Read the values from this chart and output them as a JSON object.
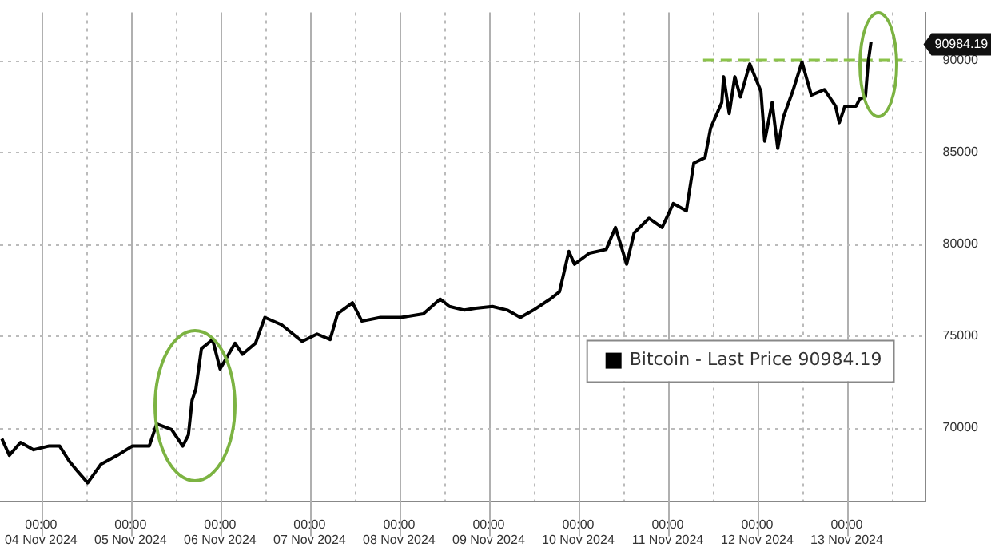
{
  "chart_data": {
    "type": "line",
    "x": [
      "2024-11-03T13:30",
      "2024-11-03T15:30",
      "2024-11-03T18:30",
      "2024-11-03T22:00",
      "2024-11-04T02:00",
      "2024-11-04T05:00",
      "2024-11-04T07:30",
      "2024-11-04T09:30",
      "2024-11-04T12:30",
      "2024-11-04T16:00",
      "2024-11-04T20:30",
      "2024-11-05T00:30",
      "2024-11-05T05:00",
      "2024-11-05T07:00",
      "2024-11-05T11:00",
      "2024-11-05T14:00",
      "2024-11-05T15:30",
      "2024-11-05T16:30",
      "2024-11-05T17:30",
      "2024-11-05T19:00",
      "2024-11-05T22:00",
      "2024-11-06T00:00",
      "2024-11-06T04:00",
      "2024-11-06T06:00",
      "2024-11-06T09:30",
      "2024-11-06T12:00",
      "2024-11-06T16:30",
      "2024-11-06T22:00",
      "2024-11-07T02:00",
      "2024-11-07T05:30",
      "2024-11-07T07:30",
      "2024-11-07T11:30",
      "2024-11-07T14:00",
      "2024-11-07T19:00",
      "2024-11-08T00:30",
      "2024-11-08T06:30",
      "2024-11-08T11:00",
      "2024-11-08T13:30",
      "2024-11-08T17:30",
      "2024-11-08T20:30",
      "2024-11-09T01:00",
      "2024-11-09T05:00",
      "2024-11-09T08:30",
      "2024-11-09T12:00",
      "2024-11-09T16:30",
      "2024-11-09T19:00",
      "2024-11-09T21:30",
      "2024-11-09T23:00",
      "2024-11-10T03:00",
      "2024-11-10T07:30",
      "2024-11-10T10:00",
      "2024-11-10T13:00",
      "2024-11-10T15:00",
      "2024-11-10T19:00",
      "2024-11-10T22:30",
      "2024-11-11T01:30",
      "2024-11-11T05:00",
      "2024-11-11T07:00",
      "2024-11-11T10:00",
      "2024-11-11T11:30",
      "2024-11-11T14:30",
      "2024-11-11T15:00",
      "2024-11-11T16:30",
      "2024-11-11T18:00",
      "2024-11-11T19:30",
      "2024-11-11T22:00",
      "2024-11-12T01:00",
      "2024-11-12T02:00",
      "2024-11-12T04:00",
      "2024-11-12T05:30",
      "2024-11-12T07:00",
      "2024-11-12T09:30",
      "2024-11-12T12:00",
      "2024-11-12T14:30",
      "2024-11-12T18:00",
      "2024-11-12T21:00",
      "2024-11-12T22:00",
      "2024-11-12T23:30",
      "2024-11-13T02:30",
      "2024-11-13T03:30",
      "2024-11-13T05:00",
      "2024-11-13T05:45",
      "2024-11-13T06:30"
    ],
    "series": [
      {
        "name": "Bitcoin - Last Price 90984.19",
        "color": "#000000",
        "values": [
          69400,
          68500,
          69200,
          68800,
          69000,
          69000,
          68200,
          67700,
          67000,
          68000,
          68500,
          69000,
          69000,
          70200,
          69900,
          69000,
          69600,
          71500,
          72100,
          74300,
          74800,
          73200,
          74600,
          74000,
          74600,
          76000,
          75600,
          74700,
          75100,
          74800,
          76200,
          76800,
          75800,
          76000,
          76000,
          76200,
          77000,
          76600,
          76400,
          76500,
          76600,
          76400,
          76000,
          76400,
          77000,
          77400,
          79600,
          78900,
          79500,
          79700,
          80900,
          78900,
          80600,
          81400,
          80900,
          82200,
          81800,
          84400,
          84700,
          86300,
          87700,
          89100,
          87100,
          89100,
          88000,
          89800,
          88300,
          85600,
          87700,
          85200,
          86900,
          88300,
          89900,
          88100,
          88400,
          87500,
          86600,
          87500,
          87500,
          87900,
          88000,
          89900,
          90984.19
        ]
      },
      {
        "type": "line",
        "color": "#8bc34a",
        "line_style": "dashed",
        "x": [
          "2024-11-11T09:30",
          "2024-11-13T15:00"
        ],
        "values": [
          90000,
          90000
        ]
      }
    ],
    "xlim": [
      "2024-11-03T13:00",
      "2024-11-13T21:00"
    ],
    "xticks": [
      {
        "value": "2024-11-04T00:00",
        "label": "00:00\n04 Nov 2024"
      },
      {
        "value": "2024-11-04T12:00",
        "label": null
      },
      {
        "value": "2024-11-05T00:00",
        "label": "00:00\n05 Nov 2024"
      },
      {
        "value": "2024-11-05T12:00",
        "label": null
      },
      {
        "value": "2024-11-06T00:00",
        "label": "00:00\n06 Nov 2024"
      },
      {
        "value": "2024-11-06T12:00",
        "label": null
      },
      {
        "value": "2024-11-07T00:00",
        "label": "00:00\n07 Nov 2024"
      },
      {
        "value": "2024-11-07T12:00",
        "label": null
      },
      {
        "value": "2024-11-08T00:00",
        "label": "00:00\n08 Nov 2024"
      },
      {
        "value": "2024-11-08T12:00",
        "label": null
      },
      {
        "value": "2024-11-09T00:00",
        "label": "00:00\n09 Nov 2024"
      },
      {
        "value": "2024-11-09T12:00",
        "label": null
      },
      {
        "value": "2024-11-10T00:00",
        "label": "00:00\n10 Nov 2024"
      },
      {
        "value": "2024-11-10T12:00",
        "label": null
      },
      {
        "value": "2024-11-11T00:00",
        "label": "00:00\n11 Nov 2024"
      },
      {
        "value": "2024-11-11T12:00",
        "label": null
      },
      {
        "value": "2024-11-12T00:00",
        "label": "00:00\n12 Nov 2024"
      },
      {
        "value": "2024-11-12T12:00",
        "label": null
      },
      {
        "value": "2024-11-13T00:00",
        "label": "00:00\n13 Nov 2024"
      },
      {
        "value": "2024-11-13T12:00",
        "label": null
      }
    ],
    "ylim": [
      66000,
      92600
    ],
    "yticks": [
      70000,
      75000,
      80000,
      85000,
      90000
    ],
    "grid": true,
    "legend": "bottom right",
    "marker": "none",
    "annotations": [
      "90984.19"
    ]
  }
}
